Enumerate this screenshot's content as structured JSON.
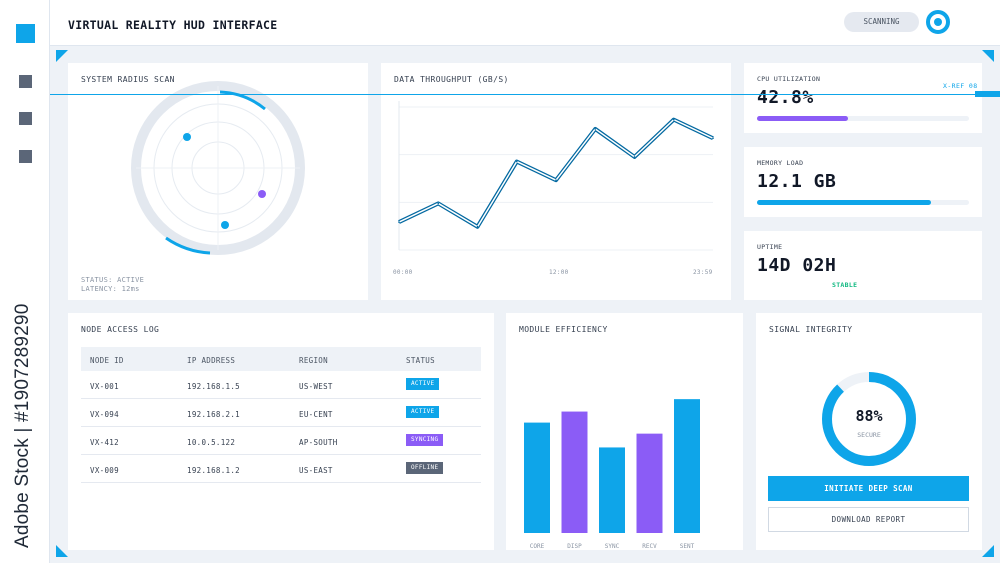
{
  "header": {
    "title": "VIRTUAL REALITY HUD INTERFACE",
    "scan_status": "SCANNING"
  },
  "watermark": "Adobe Stock | #1907289290",
  "sidebar": {
    "items": [
      {
        "icon": "square-icon"
      },
      {
        "icon": "square-icon"
      },
      {
        "icon": "square-icon"
      }
    ]
  },
  "xref": "X-REF 08",
  "radar": {
    "title": "SYSTEM RADIUS SCAN",
    "status": "STATUS: ACTIVE",
    "latency": "LATENCY: 12ms"
  },
  "throughput": {
    "title": "DATA THROUGHPUT (GB/S)",
    "ticks": [
      "00:00",
      "12:00",
      "23:59"
    ]
  },
  "cpu": {
    "label": "CPU UTILIZATION",
    "value": "42.8%",
    "level": 0.428
  },
  "memory": {
    "label": "MEMORY LOAD",
    "value": "12.1 GB",
    "level": 0.82
  },
  "uptime": {
    "label": "UPTIME",
    "value": "14D 02H",
    "status": "STABLE"
  },
  "log": {
    "title": "NODE ACCESS LOG",
    "columns": [
      "NODE ID",
      "IP ADDRESS",
      "REGION",
      "STATUS"
    ],
    "rows": [
      {
        "id": "VX-001",
        "ip": "192.168.1.5",
        "region": "US-WEST",
        "status": "ACTIVE",
        "color": "#0ea5e9"
      },
      {
        "id": "VX-094",
        "ip": "192.168.2.1",
        "region": "EU-CENT",
        "status": "ACTIVE",
        "color": "#0ea5e9"
      },
      {
        "id": "VX-412",
        "ip": "10.0.5.122",
        "region": "AP-SOUTH",
        "status": "SYNCING",
        "color": "#8b5cf6"
      },
      {
        "id": "VX-009",
        "ip": "192.168.1.2",
        "region": "US-EAST",
        "status": "OFFLINE",
        "color": "#5b6678"
      }
    ]
  },
  "module": {
    "title": "MODULE EFFICIENCY"
  },
  "signal": {
    "title": "SIGNAL INTEGRITY",
    "percent_label": "88%",
    "percent": 0.88,
    "sub": "SECURE",
    "primary_button": "INITIATE DEEP SCAN",
    "secondary_button": "DOWNLOAD REPORT"
  },
  "colors": {
    "accent": "#0ea5e9",
    "purple": "#8b5cf6",
    "stable": "#10b981"
  },
  "chart_data": [
    {
      "type": "line",
      "title": "DATA THROUGHPUT (GB/S)",
      "x": [
        0,
        1,
        2,
        3,
        4,
        5,
        6,
        7,
        8
      ],
      "y": [
        3,
        5,
        2.5,
        9.5,
        7.5,
        13,
        10,
        14,
        12
      ],
      "xticks": [
        "00:00",
        "12:00",
        "23:59"
      ],
      "ylim": [
        0,
        16
      ],
      "grid": true
    },
    {
      "type": "bar",
      "title": "MODULE EFFICIENCY",
      "categories": [
        "CORE",
        "DISP",
        "SYNC",
        "RECV",
        "SENT"
      ],
      "values": [
        80,
        88,
        62,
        72,
        97
      ],
      "colors": [
        "#0ea5e9",
        "#8b5cf6",
        "#0ea5e9",
        "#8b5cf6",
        "#0ea5e9"
      ],
      "ylim": [
        0,
        100
      ]
    }
  ]
}
